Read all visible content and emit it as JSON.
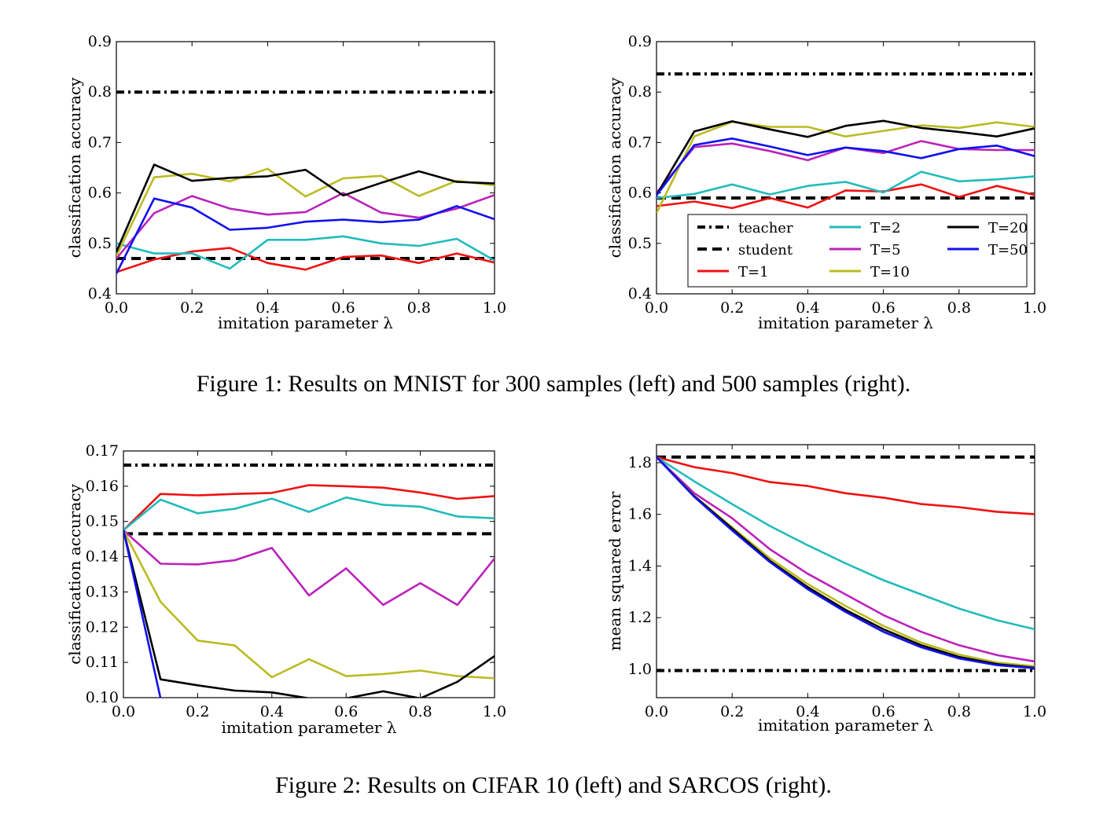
{
  "figures": [
    {
      "caption": "Figure 1: Results on MNIST for 300 samples (left) and 500 samples (right)."
    },
    {
      "caption": "Figure 2: Results on CIFAR 10 (left) and SARCOS (right)."
    }
  ],
  "legend_entries": [
    "teacher",
    "student",
    "T=1",
    "T=2",
    "T=5",
    "T=10",
    "T=20",
    "T=50"
  ],
  "colors": {
    "teacher": "#000000",
    "student": "#000000",
    "T=1": "#ee1111",
    "T=2": "#22bbbb",
    "T=5": "#bb22bb",
    "T=10": "#bbbb22",
    "T=20": "#000000",
    "T=50": "#1111ee"
  },
  "chart_data": [
    {
      "type": "line",
      "xlabel": "imitation parameter λ",
      "ylabel": "classification accuracy",
      "xlim": [
        0,
        1
      ],
      "ylim": [
        0.4,
        0.9
      ],
      "xticks": [
        0,
        0.2,
        0.4,
        0.6,
        0.8,
        1.0
      ],
      "xtick_labels": [
        "0.0",
        "0.2",
        "0.4",
        "0.6",
        "0.8",
        "1.0"
      ],
      "yticks": [
        0.4,
        0.5,
        0.6,
        0.7,
        0.8,
        0.9
      ],
      "ytick_labels": [
        "0.4",
        "0.5",
        "0.6",
        "0.7",
        "0.8",
        "0.9"
      ],
      "legend": "none",
      "x": [
        0,
        0.1,
        0.2,
        0.3,
        0.4,
        0.5,
        0.6,
        0.7,
        0.8,
        0.9,
        1.0
      ],
      "reference_lines": [
        {
          "name": "teacher",
          "y": 0.8,
          "style": "dashdot"
        },
        {
          "name": "student",
          "y": 0.47,
          "style": "dashed"
        }
      ],
      "series": [
        {
          "name": "T=1",
          "values": [
            0.443,
            0.468,
            0.484,
            0.491,
            0.461,
            0.448,
            0.473,
            0.476,
            0.461,
            0.48,
            0.462
          ]
        },
        {
          "name": "T=2",
          "values": [
            0.5,
            0.48,
            0.48,
            0.45,
            0.507,
            0.507,
            0.514,
            0.5,
            0.495,
            0.509,
            0.466
          ]
        },
        {
          "name": "T=5",
          "values": [
            0.47,
            0.56,
            0.594,
            0.569,
            0.557,
            0.562,
            0.6,
            0.561,
            0.551,
            0.569,
            0.596
          ]
        },
        {
          "name": "T=10",
          "values": [
            0.475,
            0.631,
            0.638,
            0.623,
            0.648,
            0.593,
            0.629,
            0.634,
            0.594,
            0.624,
            0.615
          ]
        },
        {
          "name": "T=20",
          "values": [
            0.483,
            0.656,
            0.624,
            0.63,
            0.633,
            0.646,
            0.595,
            0.62,
            0.643,
            0.622,
            0.619
          ]
        },
        {
          "name": "T=50",
          "values": [
            0.44,
            0.589,
            0.571,
            0.527,
            0.531,
            0.543,
            0.547,
            0.542,
            0.547,
            0.574,
            0.548
          ]
        }
      ]
    },
    {
      "type": "line",
      "xlabel": "imitation parameter λ",
      "ylabel": "classification accuracy",
      "xlim": [
        0,
        1
      ],
      "ylim": [
        0.4,
        0.9
      ],
      "xticks": [
        0,
        0.2,
        0.4,
        0.6,
        0.8,
        1.0
      ],
      "xtick_labels": [
        "0.0",
        "0.2",
        "0.4",
        "0.6",
        "0.8",
        "1.0"
      ],
      "yticks": [
        0.4,
        0.5,
        0.6,
        0.7,
        0.8,
        0.9
      ],
      "ytick_labels": [
        "0.4",
        "0.5",
        "0.6",
        "0.7",
        "0.8",
        "0.9"
      ],
      "legend": "lower-right",
      "x": [
        0,
        0.1,
        0.2,
        0.3,
        0.4,
        0.5,
        0.6,
        0.7,
        0.8,
        0.9,
        1.0
      ],
      "reference_lines": [
        {
          "name": "teacher",
          "y": 0.836,
          "style": "dashdot"
        },
        {
          "name": "student",
          "y": 0.59,
          "style": "dashed"
        }
      ],
      "series": [
        {
          "name": "T=1",
          "values": [
            0.574,
            0.583,
            0.57,
            0.59,
            0.571,
            0.605,
            0.603,
            0.617,
            0.592,
            0.614,
            0.596
          ]
        },
        {
          "name": "T=2",
          "values": [
            0.59,
            0.598,
            0.617,
            0.597,
            0.614,
            0.622,
            0.601,
            0.642,
            0.623,
            0.627,
            0.633
          ]
        },
        {
          "name": "T=5",
          "values": [
            0.6,
            0.691,
            0.698,
            0.683,
            0.665,
            0.69,
            0.679,
            0.703,
            0.687,
            0.685,
            0.685
          ]
        },
        {
          "name": "T=10",
          "values": [
            0.56,
            0.712,
            0.741,
            0.731,
            0.731,
            0.712,
            0.723,
            0.734,
            0.729,
            0.74,
            0.731
          ]
        },
        {
          "name": "T=20",
          "values": [
            0.596,
            0.722,
            0.742,
            0.726,
            0.711,
            0.733,
            0.743,
            0.729,
            0.721,
            0.712,
            0.728
          ]
        },
        {
          "name": "T=50",
          "values": [
            0.595,
            0.695,
            0.708,
            0.692,
            0.675,
            0.69,
            0.683,
            0.669,
            0.687,
            0.694,
            0.673
          ]
        }
      ]
    },
    {
      "type": "line",
      "xlabel": "imitation parameter λ",
      "ylabel": "classification accuracy",
      "xlim": [
        0,
        1
      ],
      "ylim": [
        0.1,
        0.17
      ],
      "xticks": [
        0,
        0.2,
        0.4,
        0.6,
        0.8,
        1.0
      ],
      "xtick_labels": [
        "0.0",
        "0.2",
        "0.4",
        "0.6",
        "0.8",
        "1.0"
      ],
      "yticks": [
        0.1,
        0.11,
        0.12,
        0.13,
        0.14,
        0.15,
        0.16,
        0.17
      ],
      "ytick_labels": [
        "0.10",
        "0.11",
        "0.12",
        "0.13",
        "0.14",
        "0.15",
        "0.16",
        "0.17"
      ],
      "legend": "none",
      "x": [
        0,
        0.1,
        0.2,
        0.3,
        0.4,
        0.5,
        0.6,
        0.7,
        0.8,
        0.9,
        1.0
      ],
      "reference_lines": [
        {
          "name": "teacher",
          "y": 0.166,
          "style": "dashdot"
        },
        {
          "name": "student",
          "y": 0.1465,
          "style": "dashed"
        }
      ],
      "series": [
        {
          "name": "T=1",
          "values": [
            0.1475,
            0.1578,
            0.1574,
            0.1578,
            0.1581,
            0.1603,
            0.16,
            0.1596,
            0.1582,
            0.1564,
            0.1572
          ]
        },
        {
          "name": "T=2",
          "values": [
            0.1475,
            0.1562,
            0.1523,
            0.1536,
            0.1565,
            0.1527,
            0.1568,
            0.1547,
            0.1542,
            0.1514,
            0.1509
          ]
        },
        {
          "name": "T=5",
          "values": [
            0.1475,
            0.138,
            0.1378,
            0.139,
            0.1425,
            0.129,
            0.1367,
            0.1263,
            0.1325,
            0.1263,
            0.1395
          ]
        },
        {
          "name": "T=10",
          "values": [
            0.1475,
            0.1272,
            0.1162,
            0.1148,
            0.1058,
            0.1109,
            0.1061,
            0.1067,
            0.1077,
            0.1061,
            0.1055
          ]
        },
        {
          "name": "T=20",
          "values": [
            0.1475,
            0.1052,
            0.1035,
            0.102,
            0.1015,
            0.0998,
            0.0998,
            0.1018,
            0.0998,
            0.1045,
            0.1118
          ]
        },
        {
          "name": "T=50",
          "values": [
            0.1475,
            0.0998,
            0.099,
            0.099,
            0.099,
            0.099,
            0.099,
            0.099,
            0.099,
            0.099,
            0.099
          ]
        }
      ]
    },
    {
      "type": "line",
      "xlabel": "imitation parameter λ",
      "ylabel": "mean squared error",
      "xlim": [
        0,
        1
      ],
      "ylim": [
        0.89,
        1.87
      ],
      "xticks": [
        0,
        0.2,
        0.4,
        0.6,
        0.8,
        1.0
      ],
      "xtick_labels": [
        "0.0",
        "0.2",
        "0.4",
        "0.6",
        "0.8",
        "1.0"
      ],
      "yticks": [
        1.0,
        1.2,
        1.4,
        1.6,
        1.8
      ],
      "ytick_labels": [
        "1.0",
        "1.2",
        "1.4",
        "1.6",
        "1.8"
      ],
      "legend": "none",
      "x": [
        0,
        0.1,
        0.2,
        0.3,
        0.4,
        0.5,
        0.6,
        0.7,
        0.8,
        0.9,
        1.0
      ],
      "reference_lines": [
        {
          "name": "teacher",
          "y": 0.995,
          "style": "dashdot"
        },
        {
          "name": "student",
          "y": 1.822,
          "style": "dashed"
        }
      ],
      "series": [
        {
          "name": "T=1",
          "values": [
            1.822,
            1.783,
            1.76,
            1.725,
            1.71,
            1.682,
            1.665,
            1.64,
            1.628,
            1.61,
            1.601
          ]
        },
        {
          "name": "T=2",
          "values": [
            1.822,
            1.728,
            1.64,
            1.555,
            1.48,
            1.41,
            1.345,
            1.29,
            1.235,
            1.19,
            1.155
          ]
        },
        {
          "name": "T=5",
          "values": [
            1.822,
            1.682,
            1.585,
            1.465,
            1.37,
            1.29,
            1.21,
            1.145,
            1.093,
            1.055,
            1.03
          ]
        },
        {
          "name": "T=10",
          "values": [
            1.822,
            1.672,
            1.55,
            1.43,
            1.33,
            1.245,
            1.168,
            1.103,
            1.057,
            1.026,
            1.012
          ]
        },
        {
          "name": "T=20",
          "values": [
            1.822,
            1.67,
            1.545,
            1.42,
            1.318,
            1.23,
            1.155,
            1.093,
            1.048,
            1.02,
            1.006
          ]
        },
        {
          "name": "T=50",
          "values": [
            1.822,
            1.668,
            1.538,
            1.415,
            1.31,
            1.222,
            1.145,
            1.085,
            1.042,
            1.016,
            1.004
          ]
        }
      ]
    }
  ]
}
